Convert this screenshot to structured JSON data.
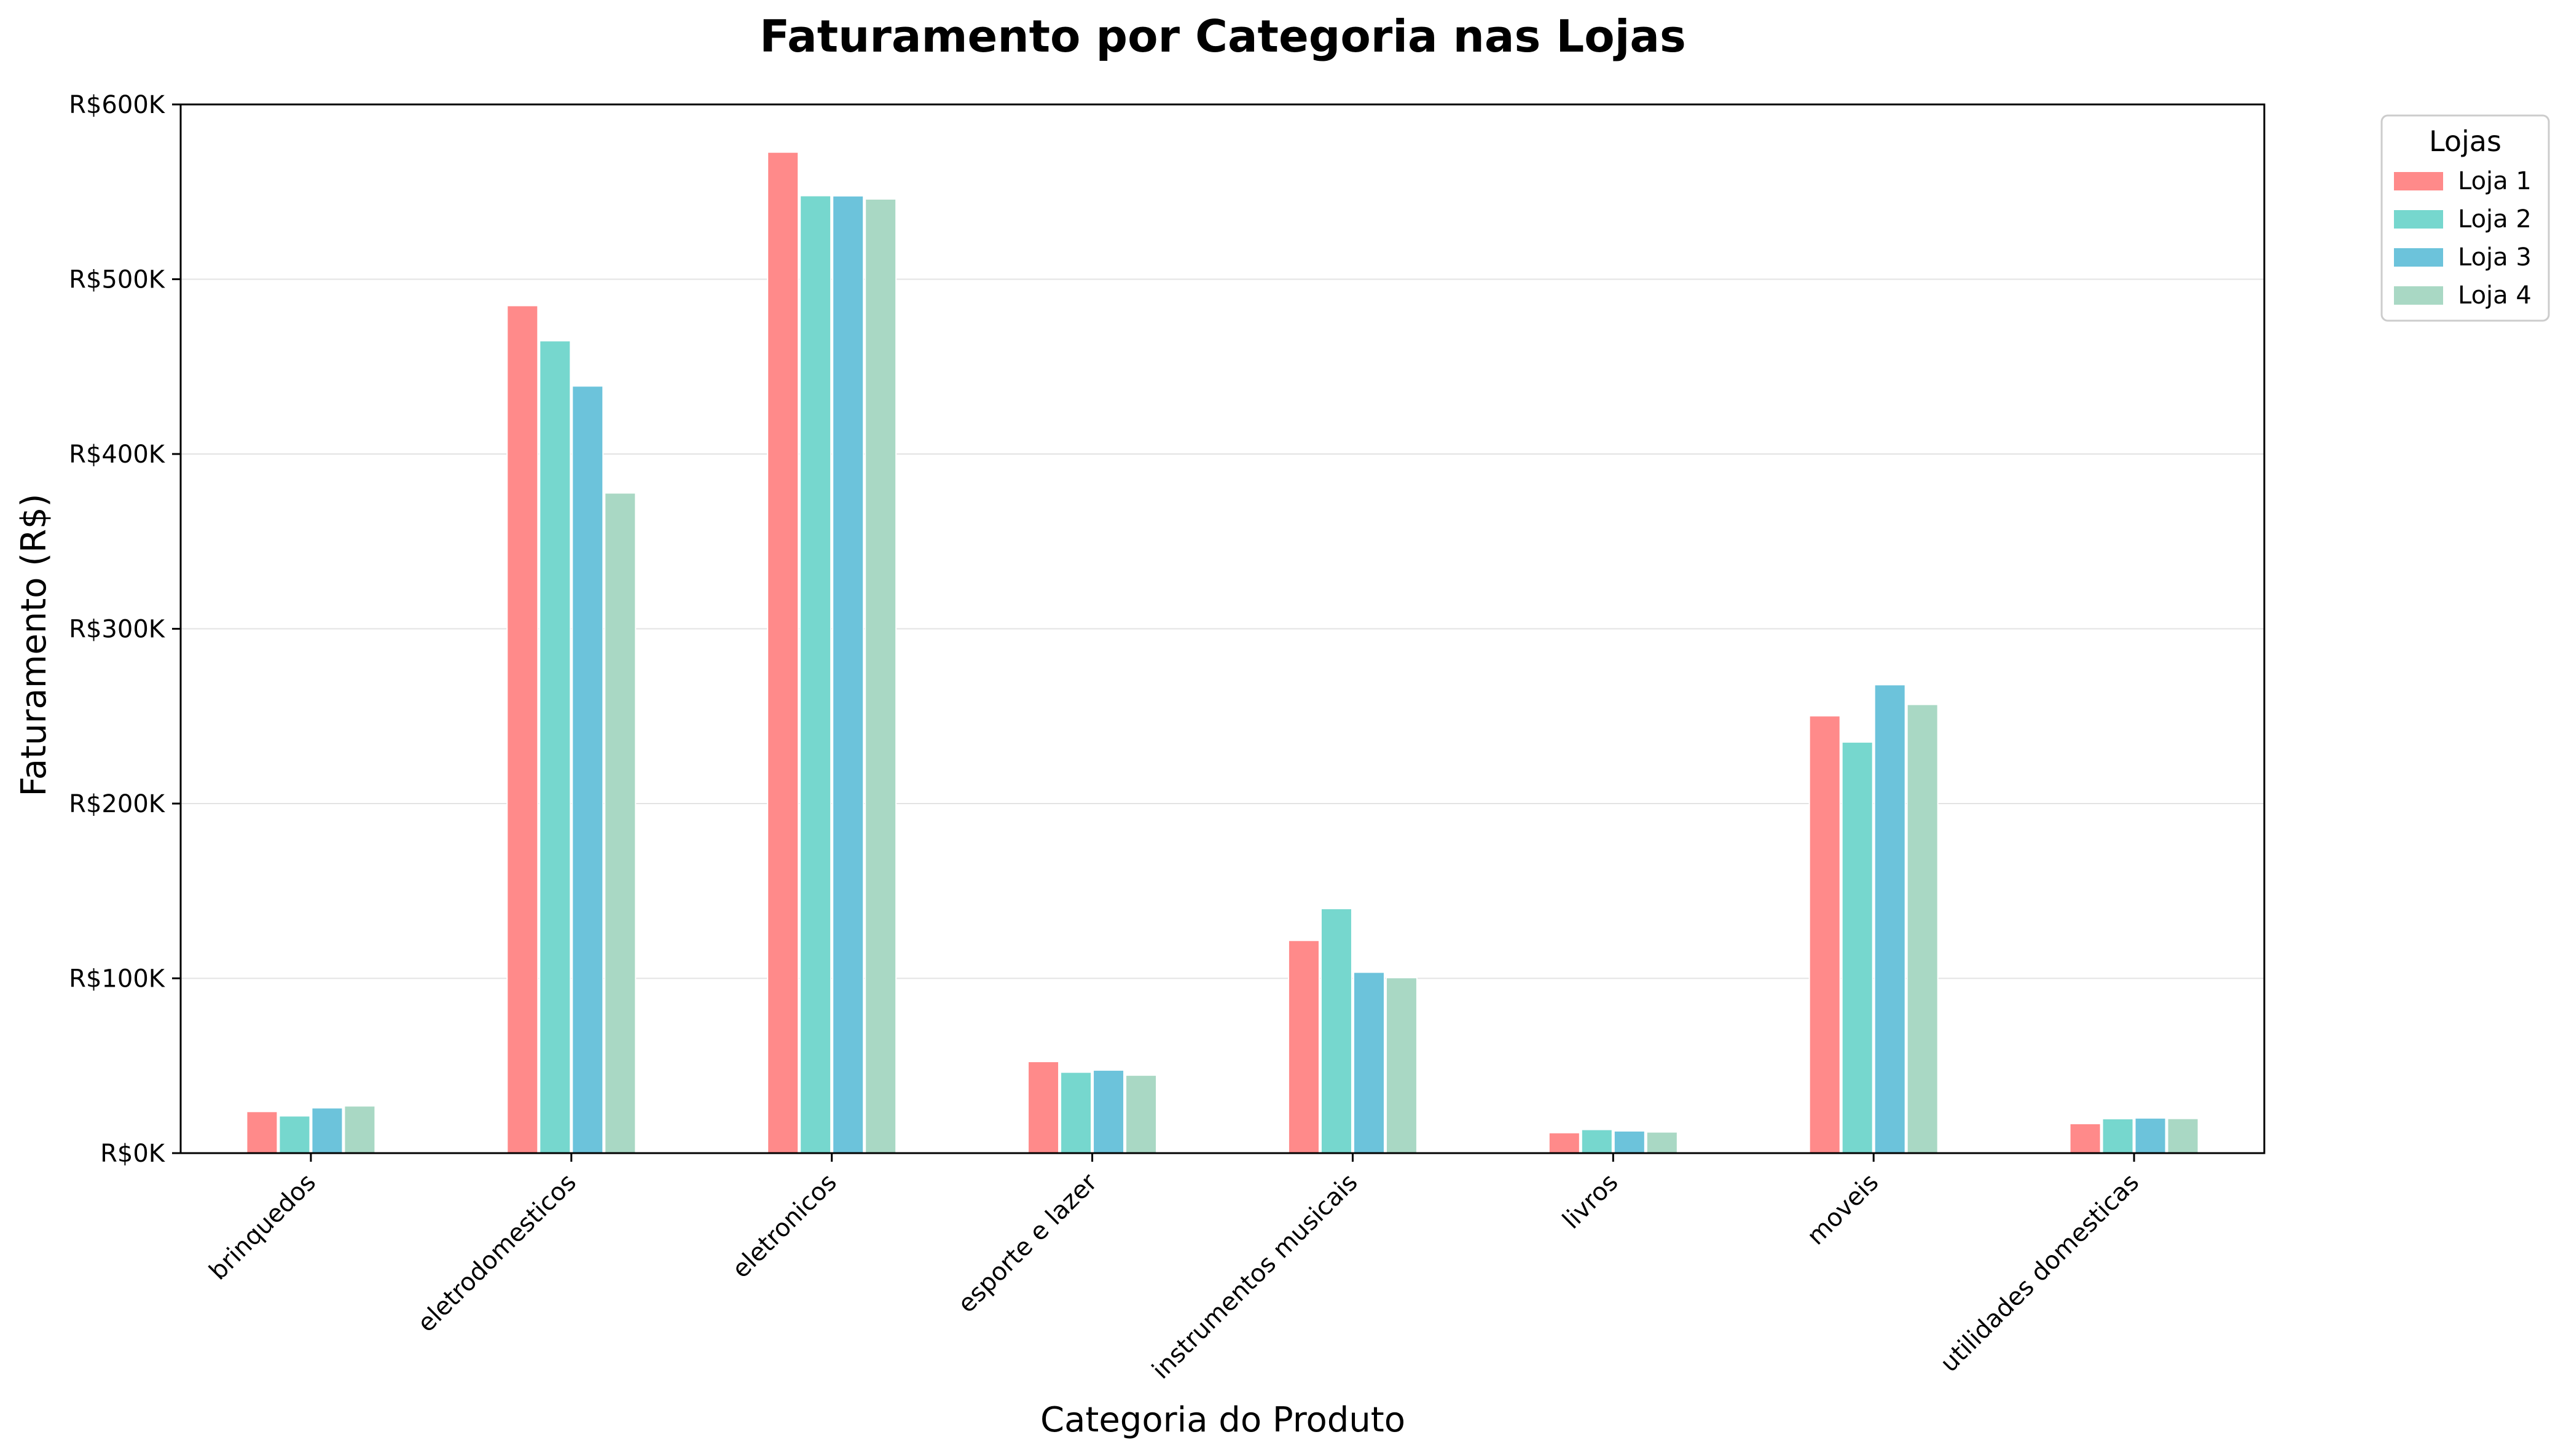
{
  "chart_data": {
    "type": "bar",
    "title": "Faturamento por Categoria nas Lojas",
    "xlabel": "Categoria do Produto",
    "ylabel": "Faturamento (R$)",
    "categories": [
      "brinquedos",
      "eletrodomesticos",
      "eletronicos",
      "esporte e lazer",
      "instrumentos musicais",
      "livros",
      "moveis",
      "utilidades domesticas"
    ],
    "series": [
      {
        "name": "Loja 1",
        "color": "#FF8A8A",
        "values": [
          23800,
          484900,
          572700,
          52400,
          121700,
          11700,
          250200,
          16900
        ]
      },
      {
        "name": "Loja 2",
        "color": "#76D7CE",
        "values": [
          21300,
          464800,
          547800,
          46300,
          139900,
          13500,
          235200,
          19700
        ]
      },
      {
        "name": "Loja 3",
        "color": "#6CC3DB",
        "values": [
          25900,
          438900,
          547700,
          47500,
          103500,
          12700,
          268000,
          20100
        ]
      },
      {
        "name": "Loja 4",
        "color": "#A9D8C4",
        "values": [
          27000,
          377700,
          545900,
          44600,
          100400,
          12100,
          256700,
          19800
        ]
      }
    ],
    "ylim": [
      0,
      600000
    ],
    "yticks": [
      0,
      100000,
      200000,
      300000,
      400000,
      500000,
      600000
    ],
    "ytick_labels": [
      "R$0K",
      "R$100K",
      "R$200K",
      "R$300K",
      "R$400K",
      "R$500K",
      "R$600K"
    ],
    "grid": "y",
    "legend": {
      "title": "Lojas",
      "placement": "outside-top-right"
    }
  }
}
